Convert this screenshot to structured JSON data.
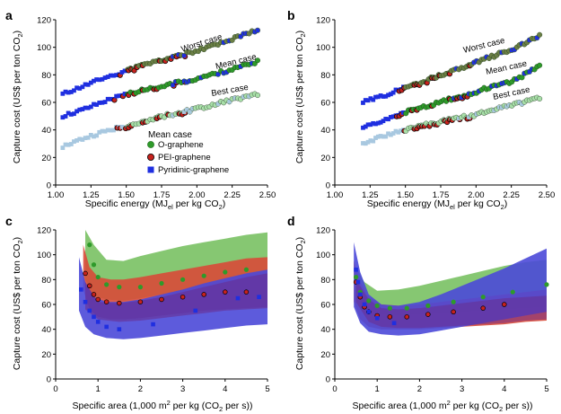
{
  "colors": {
    "o_graphene": "#2e9a2a",
    "o_graphene_fill": "#7fc46a",
    "pei_graphene": "#c7221d",
    "pei_graphene_fill": "#d84a38",
    "pyridinic_graphene": "#1f2fe0",
    "pyridinic_fill": "#4b49d8",
    "worst_case": "#6b7f45",
    "best_case": "#a8dfa8",
    "best_case_blue": "#a8c8e0",
    "overlap_purple": "#6a2a8a"
  },
  "chart_data": [
    {
      "panel": "a",
      "type": "scatter",
      "xlabel": "Specific energy (MJel per kg CO2)",
      "ylabel": "Capture cost (US$ per ton CO2)",
      "xlim": [
        1.0,
        2.5
      ],
      "ylim": [
        0,
        120
      ],
      "xticks": [
        "1.00",
        "1.25",
        "1.50",
        "1.75",
        "2.00",
        "2.25",
        "2.50"
      ],
      "yticks": [
        "0",
        "20",
        "40",
        "60",
        "80",
        "100",
        "120"
      ],
      "annotations": [
        "Worst case",
        "Mean case",
        "Best case"
      ],
      "legend": {
        "title": "Mean case",
        "entries": [
          "O-graphene",
          "PEI-graphene",
          "Pyridinic-graphene"
        ],
        "placement": "center"
      },
      "series": [
        {
          "name": "Worst case",
          "color": "#6b7f45",
          "x": [
            1.05,
            1.2,
            1.35,
            1.5,
            1.65,
            1.8,
            1.95,
            2.1,
            2.25,
            2.45
          ],
          "y": [
            66,
            72,
            78,
            83,
            88,
            92,
            96,
            101,
            106,
            113
          ]
        },
        {
          "name": "Mean case",
          "color": "#2e9a2a",
          "x": [
            1.05,
            1.2,
            1.35,
            1.5,
            1.65,
            1.8,
            1.95,
            2.1,
            2.25,
            2.45
          ],
          "y": [
            50,
            55,
            61,
            66,
            70,
            73,
            76,
            80,
            84,
            90
          ]
        },
        {
          "name": "Best case",
          "color": "#a8dfa8",
          "x": [
            1.05,
            1.2,
            1.35,
            1.5,
            1.65,
            1.8,
            1.95,
            2.1,
            2.25,
            2.45
          ],
          "y": [
            28,
            34,
            39,
            43,
            47,
            51,
            54,
            58,
            62,
            66
          ]
        }
      ]
    },
    {
      "panel": "b",
      "type": "scatter",
      "xlabel": "Specific energy (MJel per kg CO2)",
      "ylabel": "Capture cost (US$ per ton CO2)",
      "xlim": [
        1.0,
        2.5
      ],
      "ylim": [
        0,
        120
      ],
      "xticks": [
        "1.00",
        "1.25",
        "1.50",
        "1.75",
        "2.00",
        "2.25",
        "2.50"
      ],
      "yticks": [
        "0",
        "20",
        "40",
        "60",
        "80",
        "100",
        "120"
      ],
      "annotations": [
        "Worst case",
        "Mean case",
        "Best case"
      ],
      "series": [
        {
          "name": "Worst case",
          "color": "#6b7f45",
          "x": [
            1.2,
            1.35,
            1.5,
            1.65,
            1.8,
            1.95,
            2.1,
            2.25,
            2.45
          ],
          "y": [
            60,
            65,
            71,
            76,
            82,
            87,
            93,
            98,
            108
          ]
        },
        {
          "name": "Mean case",
          "color": "#2e9a2a",
          "x": [
            1.2,
            1.35,
            1.5,
            1.65,
            1.8,
            1.95,
            2.1,
            2.25,
            2.45
          ],
          "y": [
            42,
            47,
            53,
            57,
            62,
            66,
            71,
            75,
            86
          ]
        },
        {
          "name": "Best case",
          "color": "#a8dfa8",
          "x": [
            1.2,
            1.35,
            1.5,
            1.65,
            1.8,
            1.95,
            2.1,
            2.25,
            2.45
          ],
          "y": [
            30,
            36,
            40,
            44,
            47,
            50,
            54,
            58,
            63
          ]
        }
      ]
    },
    {
      "panel": "c",
      "type": "scatter",
      "xlabel": "Specific area (1,000 m2 per kg (CO2 per s))",
      "ylabel": "Capture cost (US$ per ton CO2)",
      "xlim": [
        0,
        5
      ],
      "ylim": [
        0,
        120
      ],
      "xticks": [
        "0",
        "1",
        "2",
        "3",
        "4",
        "5"
      ],
      "yticks": [
        "0",
        "20",
        "40",
        "60",
        "80",
        "100",
        "120"
      ],
      "series": [
        {
          "name": "O-graphene",
          "color": "#2e9a2a",
          "x": [
            0.8,
            0.9,
            1.0,
            1.2,
            1.5,
            2.0,
            2.5,
            3.0,
            3.5,
            4.0,
            4.5
          ],
          "y": [
            108,
            92,
            82,
            76,
            74,
            74,
            77,
            80,
            83,
            86,
            88
          ]
        },
        {
          "name": "PEI-graphene",
          "color": "#c7221d",
          "x": [
            0.7,
            0.8,
            0.9,
            1.0,
            1.2,
            1.5,
            2.0,
            2.5,
            3.0,
            3.5,
            4.0,
            4.5
          ],
          "y": [
            85,
            75,
            68,
            64,
            62,
            61,
            62,
            64,
            66,
            68,
            70,
            70
          ]
        },
        {
          "name": "Pyridinic-graphene",
          "color": "#1f2fe0",
          "x": [
            0.6,
            0.7,
            0.8,
            0.9,
            1.0,
            1.2,
            1.5,
            2.3,
            3.3,
            4.3,
            4.8
          ],
          "y": [
            72,
            62,
            55,
            50,
            46,
            42,
            40,
            44,
            55,
            65,
            66
          ]
        }
      ]
    },
    {
      "panel": "d",
      "type": "scatter",
      "xlabel": "Specific area (1,000 m2 per kg (CO2 per s))",
      "ylabel": "Capture cost (US$ per ton CO2)",
      "xlim": [
        0,
        5
      ],
      "ylim": [
        0,
        120
      ],
      "xticks": [
        "0",
        "1",
        "2",
        "3",
        "4",
        "5"
      ],
      "yticks": [
        "0",
        "20",
        "40",
        "60",
        "80",
        "100",
        "120"
      ],
      "series": [
        {
          "name": "O-graphene",
          "color": "#2e9a2a",
          "x": [
            0.5,
            0.6,
            0.8,
            1.0,
            1.3,
            1.7,
            2.2,
            2.8,
            3.5,
            4.2,
            5.0
          ],
          "y": [
            82,
            70,
            63,
            59,
            57,
            57,
            59,
            62,
            66,
            70,
            76
          ]
        },
        {
          "name": "PEI-graphene",
          "color": "#c7221d",
          "x": [
            0.5,
            0.6,
            0.7,
            0.8,
            1.0,
            1.3,
            1.7,
            2.2,
            2.8,
            3.5,
            4.0
          ],
          "y": [
            78,
            66,
            58,
            54,
            51,
            50,
            50,
            52,
            54,
            57,
            60
          ]
        },
        {
          "name": "Pyridinic-graphene",
          "color": "#1f2fe0",
          "x": [
            0.5,
            0.55,
            0.6,
            0.7,
            0.8,
            1.0,
            1.4
          ],
          "y": [
            88,
            78,
            68,
            60,
            54,
            49,
            45
          ]
        }
      ]
    }
  ],
  "labels": {
    "panel_a": "a",
    "panel_b": "b",
    "panel_c": "c",
    "panel_d": "d",
    "ylabel_cost": "Capture cost (US$ per ton CO",
    "ylabel_close": ")",
    "xlabel_energy_main": "Specific energy (MJ",
    "xlabel_energy_sub": "el",
    "xlabel_energy_tail": " per kg CO",
    "xlabel_energy_close": ")",
    "xlabel_area_a": "Specific area (1,000 m",
    "xlabel_area_sup": "2",
    "xlabel_area_b": " per kg (CO",
    "xlabel_area_c": " per s))",
    "sub2": "2",
    "worst_case": "Worst case",
    "mean_case": "Mean case",
    "best_case": "Best case",
    "legend_title": "Mean case",
    "legend_o": "O-graphene",
    "legend_pei": "PEI-graphene",
    "legend_pyr": "Pyridinic-graphene"
  }
}
